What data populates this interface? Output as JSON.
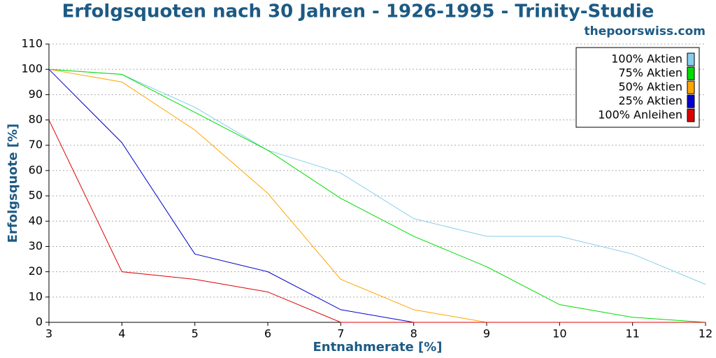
{
  "chart_data": {
    "type": "line",
    "title": "Erfolgsquoten nach 30 Jahren - 1926-1995 - Trinity-Studie",
    "subtitle": "thepoorswiss.com",
    "x_label": "Entnahmerate [%]",
    "y_label": "Erfolgsquote [%]",
    "x": [
      3,
      4,
      5,
      6,
      7,
      8,
      9,
      10,
      11,
      12
    ],
    "xlim": [
      3,
      12
    ],
    "xticks": [
      3,
      4,
      5,
      6,
      7,
      8,
      9,
      10,
      11,
      12
    ],
    "ylim": [
      0,
      110
    ],
    "yticks": [
      0,
      10,
      20,
      30,
      40,
      50,
      60,
      70,
      80,
      90,
      100,
      110
    ],
    "grid": true,
    "legend": "top-right",
    "series": [
      {
        "name": "100% Aktien",
        "color": "#87ceeb",
        "values": [
          100,
          98,
          85,
          68,
          59,
          41,
          34,
          34,
          27,
          15
        ]
      },
      {
        "name": "75% Aktien",
        "color": "#00dd00",
        "values": [
          100,
          98,
          83,
          68,
          49,
          34,
          22,
          7,
          2,
          0
        ]
      },
      {
        "name": "50% Aktien",
        "color": "#ffa500",
        "values": [
          100,
          95,
          76,
          51,
          17,
          5,
          0,
          0,
          0,
          0
        ]
      },
      {
        "name": "25% Aktien",
        "color": "#0000cc",
        "values": [
          100,
          71,
          27,
          20,
          5,
          0,
          0,
          0,
          0,
          0
        ]
      },
      {
        "name": "100% Anleihen",
        "color": "#dd0000",
        "values": [
          80,
          20,
          17,
          12,
          0,
          0,
          0,
          0,
          0,
          0
        ]
      }
    ]
  }
}
